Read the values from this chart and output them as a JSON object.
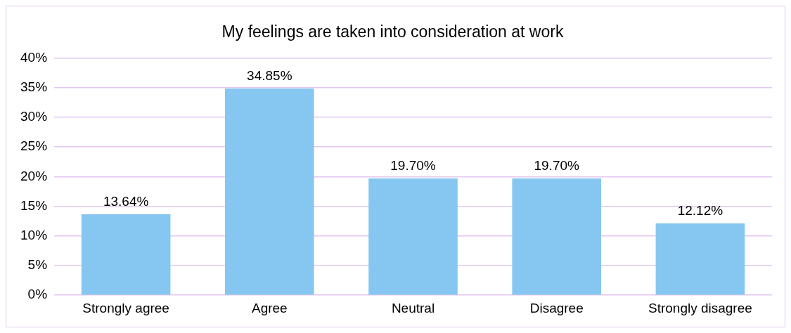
{
  "chart_data": {
    "type": "bar",
    "title": "My feelings are taken into consideration at work",
    "categories": [
      "Strongly agree",
      "Agree",
      "Neutral",
      "Disagree",
      "Strongly disagree"
    ],
    "values": [
      13.64,
      34.85,
      19.7,
      19.7,
      12.12
    ],
    "value_labels": [
      "13.64%",
      "34.85%",
      "19.70%",
      "19.70%",
      "12.12%"
    ],
    "color": "#85c7f0",
    "ylim": [
      0,
      40
    ],
    "yticks": [
      {
        "value": 0,
        "label": "0%"
      },
      {
        "value": 5,
        "label": "5%"
      },
      {
        "value": 10,
        "label": "10%"
      },
      {
        "value": 15,
        "label": "15%"
      },
      {
        "value": 20,
        "label": "20%"
      },
      {
        "value": 25,
        "label": "25%"
      },
      {
        "value": 30,
        "label": "30%"
      },
      {
        "value": 35,
        "label": "35%"
      },
      {
        "value": 40,
        "label": "40%"
      }
    ],
    "grid": "y",
    "legend": false
  }
}
